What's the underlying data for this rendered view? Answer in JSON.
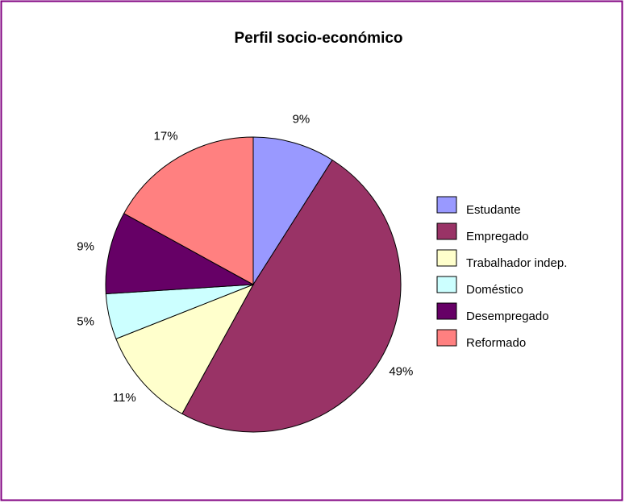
{
  "chart_data": {
    "type": "pie",
    "title": "Perfil socio-económico",
    "categories": [
      "Estudante",
      "Empregado",
      "Trabalhador indep.",
      "Doméstico",
      "Desempregado",
      "Reformado"
    ],
    "values": [
      9,
      49,
      11,
      5,
      9,
      17
    ],
    "value_labels": [
      "9%",
      "49%",
      "11%",
      "5%",
      "9%",
      "17%"
    ],
    "colors": [
      "#9999ff",
      "#993366",
      "#ffffcc",
      "#ccffff",
      "#660066",
      "#ff8080"
    ],
    "legend": "right"
  }
}
